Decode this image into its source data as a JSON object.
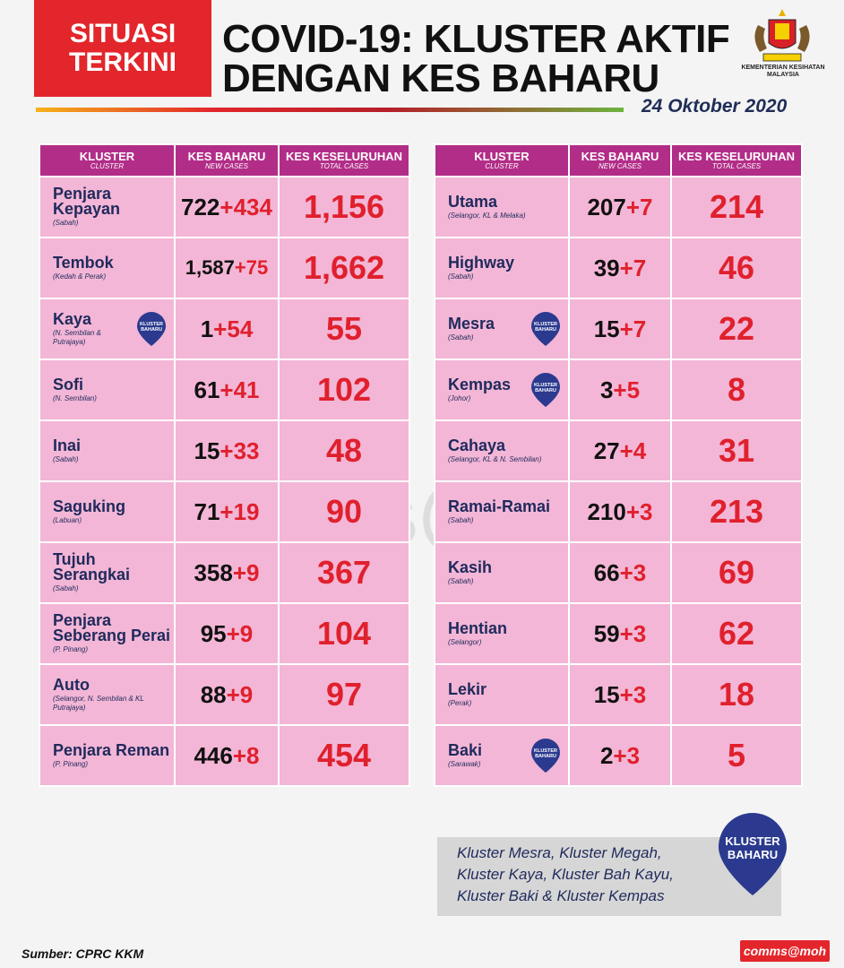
{
  "header": {
    "badge_line1": "SITUASI",
    "badge_line2": "TERKINI",
    "title_line1": "COVID-19: KLUSTER AKTIF",
    "title_line2": "DENGAN KES BAHARU",
    "ministry_line1": "KEMENTERIAN KESIHATAN",
    "ministry_line2": "MALAYSIA",
    "date": "24 Oktober 2020"
  },
  "columns": {
    "cluster": "KLUSTER",
    "cluster_en": "CLUSTER",
    "new": "KES BAHARU",
    "new_en": "NEW CASES",
    "total": "KES KESELURUHAN",
    "total_en": "TOTAL CASES"
  },
  "pin_label_line1": "KLUSTER",
  "pin_label_line2": "BAHARU",
  "chart_data": {
    "type": "table",
    "left_table": [
      {
        "name": "Penjara Kepayan",
        "location": "(Sabah)",
        "base": "722",
        "added": "+434",
        "total": "1,156",
        "new_cluster": false
      },
      {
        "name": "Tembok",
        "location": "(Kedah & Perak)",
        "base": "1,587",
        "added": "+75",
        "total": "1,662",
        "new_cluster": false
      },
      {
        "name": "Kaya",
        "location": "(N. Sembilan & Putrajaya)",
        "base": "1",
        "added": "+54",
        "total": "55",
        "new_cluster": true
      },
      {
        "name": "Sofi",
        "location": "(N. Sembilan)",
        "base": "61",
        "added": "+41",
        "total": "102",
        "new_cluster": false
      },
      {
        "name": "Inai",
        "location": "(Sabah)",
        "base": "15",
        "added": "+33",
        "total": "48",
        "new_cluster": false
      },
      {
        "name": "Saguking",
        "location": "(Labuan)",
        "base": "71",
        "added": "+19",
        "total": "90",
        "new_cluster": false
      },
      {
        "name": "Tujuh Serangkai",
        "location": "(Sabah)",
        "base": "358",
        "added": "+9",
        "total": "367",
        "new_cluster": false
      },
      {
        "name": "Penjara Seberang Perai",
        "location": "(P. Pinang)",
        "base": "95",
        "added": "+9",
        "total": "104",
        "new_cluster": false
      },
      {
        "name": "Auto",
        "location": "(Selangor, N. Sembilan & KL Putrajaya)",
        "base": "88",
        "added": "+9",
        "total": "97",
        "new_cluster": false
      },
      {
        "name": "Penjara Reman",
        "location": "(P. Pinang)",
        "base": "446",
        "added": "+8",
        "total": "454",
        "new_cluster": false
      }
    ],
    "right_table": [
      {
        "name": "Utama",
        "location": "(Selangor, KL & Melaka)",
        "base": "207",
        "added": "+7",
        "total": "214",
        "new_cluster": false
      },
      {
        "name": "Highway",
        "location": "(Sabah)",
        "base": "39",
        "added": "+7",
        "total": "46",
        "new_cluster": false
      },
      {
        "name": "Mesra",
        "location": "(Sabah)",
        "base": "15",
        "added": "+7",
        "total": "22",
        "new_cluster": true
      },
      {
        "name": "Kempas",
        "location": "(Johor)",
        "base": "3",
        "added": "+5",
        "total": "8",
        "new_cluster": true
      },
      {
        "name": "Cahaya",
        "location": "(Selangor, KL & N. Sembilan)",
        "base": "27",
        "added": "+4",
        "total": "31",
        "new_cluster": false
      },
      {
        "name": "Ramai-Ramai",
        "location": "(Sabah)",
        "base": "210",
        "added": "+3",
        "total": "213",
        "new_cluster": false
      },
      {
        "name": "Kasih",
        "location": "(Sabah)",
        "base": "66",
        "added": "+3",
        "total": "69",
        "new_cluster": false
      },
      {
        "name": "Hentian",
        "location": "(Selangor)",
        "base": "59",
        "added": "+3",
        "total": "62",
        "new_cluster": false
      },
      {
        "name": "Lekir",
        "location": "(Perak)",
        "base": "15",
        "added": "+3",
        "total": "18",
        "new_cluster": false
      },
      {
        "name": "Baki",
        "location": "(Sarawak)",
        "base": "2",
        "added": "+3",
        "total": "5",
        "new_cluster": true
      }
    ]
  },
  "note_lines": [
    "Kluster Mesra, Kluster Megah,",
    "Kluster Kaya, Kluster Bah Kayu,",
    "Kluster Baki & Kluster Kempas"
  ],
  "source": "Sumber: CPRC KKM",
  "credit": "comms@moh",
  "watermark": "comms@moh",
  "colors": {
    "badge_red": "#e3262b",
    "header_magenta": "#b22d88",
    "cell_pink": "#f3b6d6",
    "number_red": "#e0202d",
    "navy": "#1f2a5c"
  }
}
